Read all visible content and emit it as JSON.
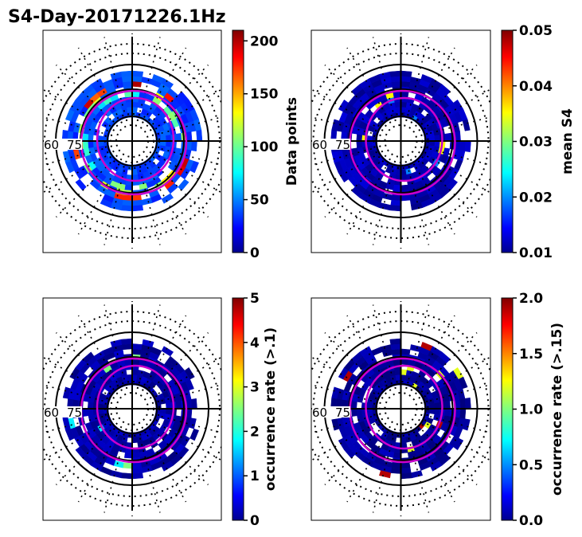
{
  "figure": {
    "title": "S4-Day-20171226.1Hz"
  },
  "chart_data": [
    {
      "type": "heatmap",
      "projection": "polar",
      "colormap": "jet",
      "colorbar_label": "Data points",
      "clim": [
        0,
        210
      ],
      "colorbar_ticks": [
        "0",
        "50",
        "100",
        "150",
        "200"
      ],
      "colorbar_values": [
        0,
        50,
        100,
        150,
        200
      ],
      "latitude_label_fragments": [
        "60",
        "75"
      ],
      "dominant_level": 40,
      "ring_highlights": [
        {
          "radius_fraction": 0.62,
          "level": 120
        },
        {
          "radius_fraction": 0.7,
          "level": 180
        },
        {
          "radius_fraction": 0.52,
          "level": 90
        }
      ]
    },
    {
      "type": "heatmap",
      "projection": "polar",
      "colormap": "jet",
      "colorbar_label": "mean S4",
      "clim": [
        0.01,
        0.05
      ],
      "colorbar_ticks": [
        "0.01",
        "0.02",
        "0.03",
        "0.04",
        "0.05"
      ],
      "colorbar_values": [
        0.01,
        0.02,
        0.03,
        0.04,
        0.05
      ],
      "latitude_label_fragments": [
        "60",
        "75"
      ],
      "dominant_level": 0.012,
      "sparse_highlights": [
        {
          "level": 0.035
        },
        {
          "level": 0.02
        }
      ]
    },
    {
      "type": "heatmap",
      "projection": "polar",
      "colormap": "jet",
      "colorbar_label": "occurrence rate (>.1)",
      "clim": [
        0,
        5
      ],
      "colorbar_ticks": [
        "0",
        "1",
        "2",
        "3",
        "4",
        "5"
      ],
      "colorbar_values": [
        0,
        1,
        2,
        3,
        4,
        5
      ],
      "latitude_label_fragments": [
        "60",
        "75"
      ],
      "dominant_level": 0.2,
      "sparse_highlights": [
        {
          "level": 2.5
        },
        {
          "level": 1.8
        }
      ]
    },
    {
      "type": "heatmap",
      "projection": "polar",
      "colormap": "jet",
      "colorbar_label": "occurrence rate (>.15)",
      "clim": [
        0,
        2
      ],
      "colorbar_ticks": [
        "0.0",
        "0.5",
        "1.0",
        "1.5",
        "2.0"
      ],
      "colorbar_values": [
        0,
        0.5,
        1.0,
        1.5,
        2.0
      ],
      "latitude_label_fragments": [
        "60",
        "75"
      ],
      "dominant_level": 0.05,
      "sparse_highlights": [
        {
          "level": 1.9
        },
        {
          "level": 1.2
        }
      ]
    }
  ]
}
